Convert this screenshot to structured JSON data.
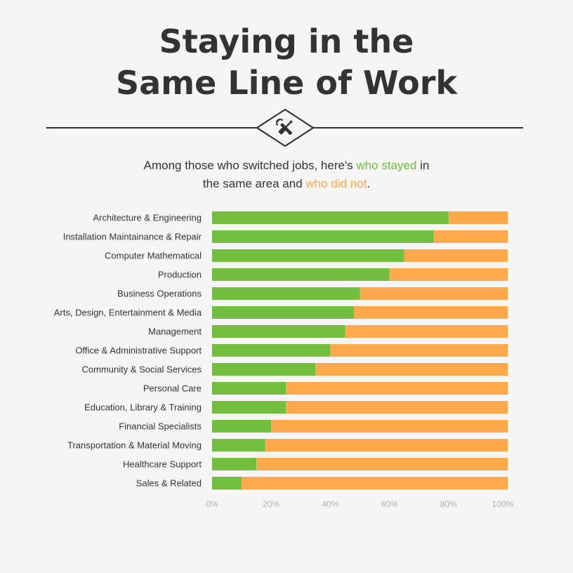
{
  "header": {
    "title_line1": "Staying in the",
    "title_line2": "Same Line of Work"
  },
  "icon": "wrench-screwdriver-icon",
  "subtitle": {
    "part1": "Among those who switched jobs, here's ",
    "stayed": "who stayed",
    "part2": " in",
    "part3": "the same area and ",
    "not": "who did not",
    "part4": "."
  },
  "colors": {
    "stayed": "#72bf3f",
    "not": "#ffa84c",
    "text": "#333333",
    "tick": "#b0b0b0",
    "background": "#f5f5f5"
  },
  "chart_data": {
    "type": "bar",
    "orientation": "horizontal",
    "stacked": true,
    "categories": [
      "Architecture & Engineering",
      "Installation Maintainance & Repair",
      "Computer Mathematical",
      "Production",
      "Business Operations",
      "Arts, Design, Entertainment & Media",
      "Management",
      "Office & Administrative Support",
      "Community & Social Services",
      "Personal Care",
      "Education, Library & Training",
      "Financial Specialists",
      "Transportation & Material Moving",
      "Healthcare Support",
      "Sales & Related"
    ],
    "series": [
      {
        "name": "who stayed",
        "color": "#72bf3f",
        "values": [
          80,
          75,
          65,
          60,
          50,
          48,
          45,
          40,
          35,
          25,
          25,
          20,
          18,
          15,
          10
        ]
      },
      {
        "name": "who did not",
        "color": "#ffa84c",
        "values": [
          20,
          25,
          35,
          40,
          50,
          52,
          55,
          60,
          65,
          75,
          75,
          80,
          82,
          85,
          90
        ]
      }
    ],
    "xlim": [
      0,
      100
    ],
    "xticks": [
      "0%",
      "20%",
      "40%",
      "60%",
      "80%",
      "100%"
    ],
    "grid": false,
    "legend": "inline in subtitle"
  }
}
